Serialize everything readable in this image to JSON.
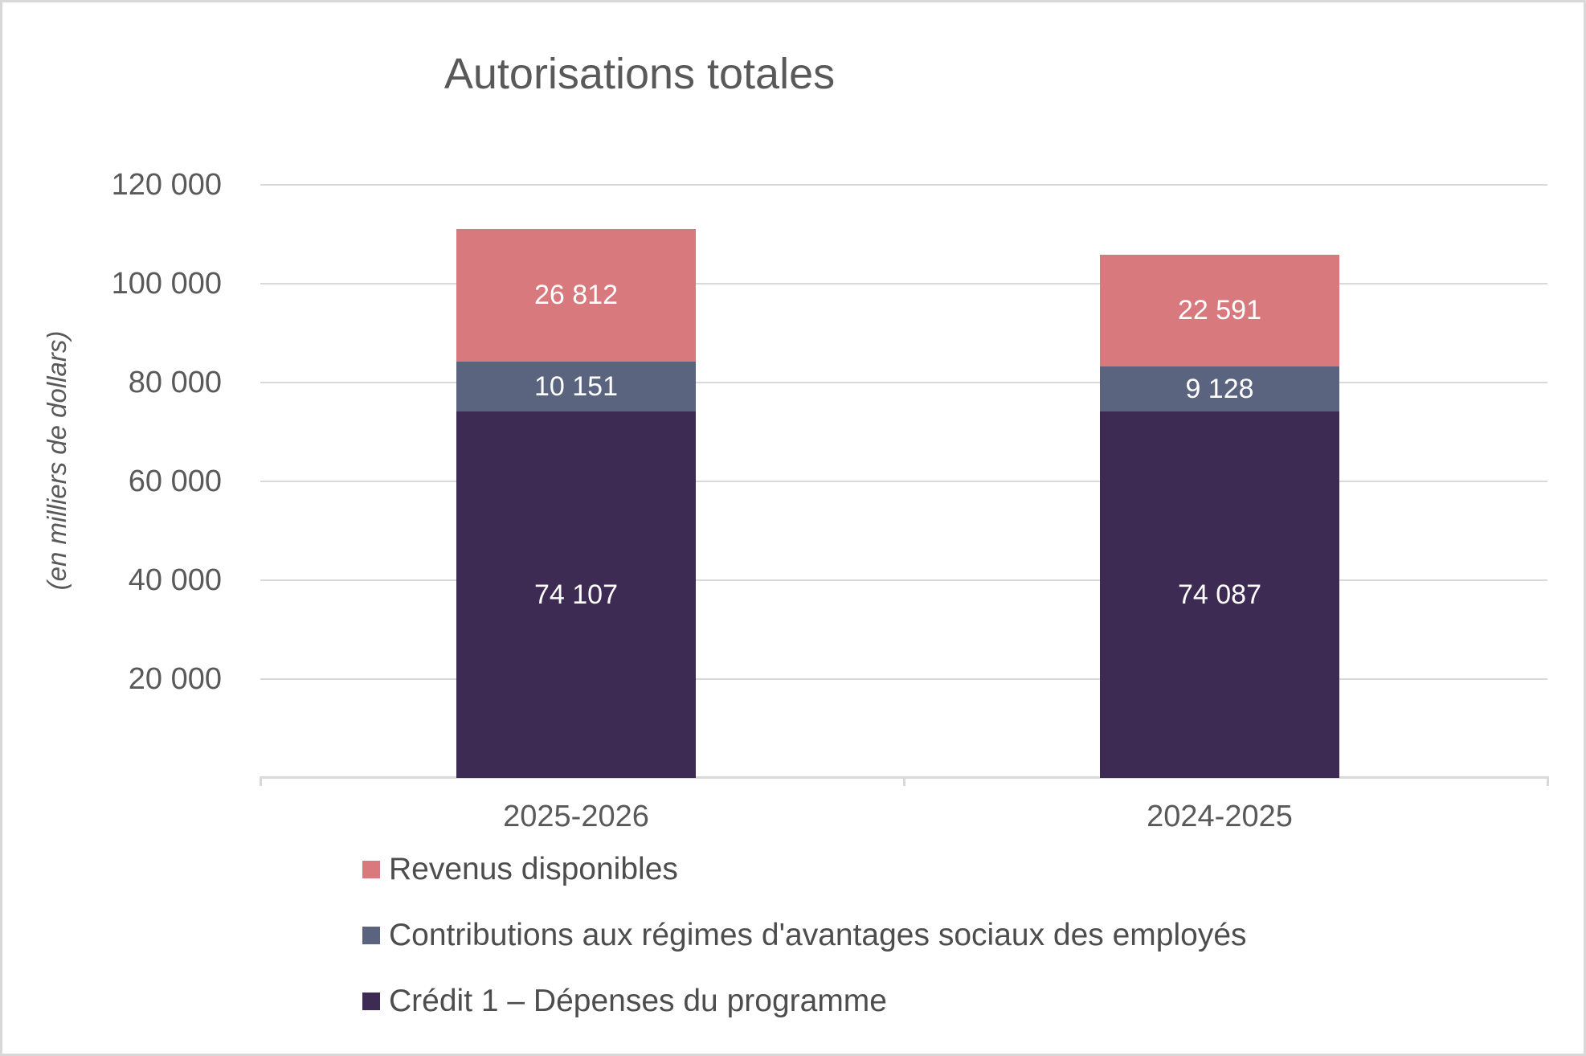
{
  "chart_data": {
    "type": "bar",
    "stacked": true,
    "title": "Autorisations totales",
    "ylabel": "(en milliers de dollars)",
    "categories": [
      "2025-2026",
      "2024-2025"
    ],
    "series": [
      {
        "name": "Crédit 1 – Dépenses du programme",
        "color": "#3D2B53",
        "values": [
          74107,
          74087
        ],
        "labels": [
          "74 107",
          "74 087"
        ]
      },
      {
        "name": "Contributions aux régimes d'avantages sociaux des employés",
        "color": "#5A647F",
        "values": [
          10151,
          9128
        ],
        "labels": [
          "10 151",
          "9 128"
        ]
      },
      {
        "name": "Revenus disponibles",
        "color": "#D7797D",
        "values": [
          26812,
          22591
        ],
        "labels": [
          "26 812",
          "22 591"
        ]
      }
    ],
    "totals": [
      111070,
      105806
    ],
    "ylim": [
      0,
      120000
    ],
    "yticks": [
      {
        "value": 20000,
        "label": "20 000"
      },
      {
        "value": 40000,
        "label": "40 000"
      },
      {
        "value": 60000,
        "label": "60 000"
      },
      {
        "value": 80000,
        "label": "80 000"
      },
      {
        "value": 100000,
        "label": "100 000"
      },
      {
        "value": 120000,
        "label": "120 000"
      }
    ],
    "grid": true,
    "legend_position": "bottom-left",
    "legend": [
      {
        "label": "Revenus disponibles",
        "color": "#D7797D"
      },
      {
        "label": "Contributions aux régimes d'avantages sociaux des employés",
        "color": "#5A647F"
      },
      {
        "label": "Crédit 1 – Dépenses du programme",
        "color": "#3D2B53"
      }
    ],
    "colors": {
      "axis": "#D9D9D9",
      "tick_text": "#595959",
      "bar_label_text": "#FFFFFF"
    }
  }
}
